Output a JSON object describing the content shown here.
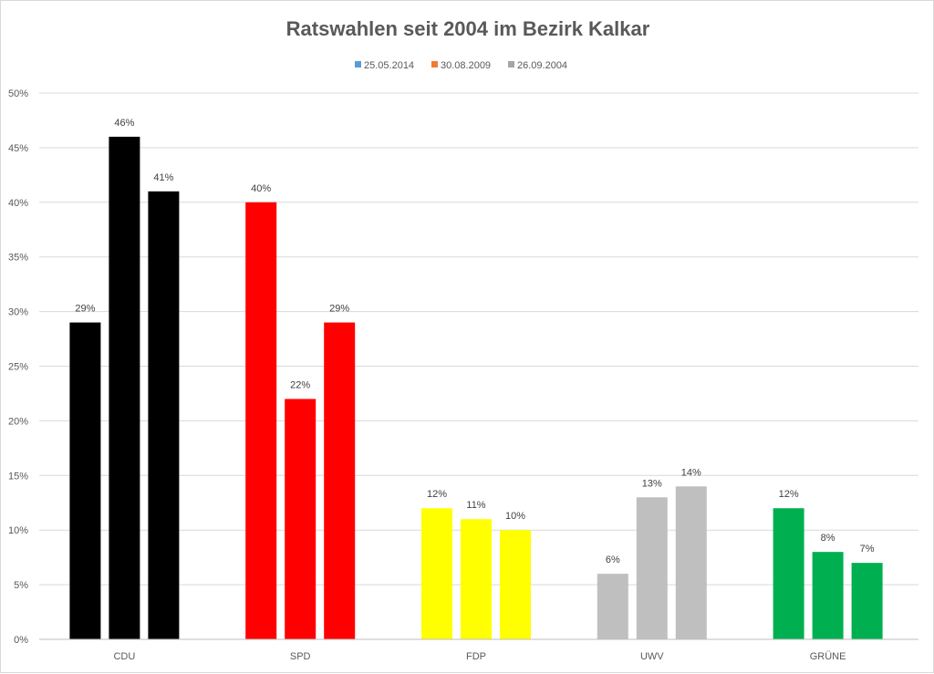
{
  "chart_data": {
    "type": "bar",
    "title": "Ratswahlen seit 2004 im Bezirk Kalkar",
    "categories": [
      "CDU",
      "SPD",
      "FDP",
      "UWV",
      "GRÜNE"
    ],
    "series": [
      {
        "name": "25.05.2014",
        "legend_color": "#5b9bd5",
        "values": [
          29,
          40,
          12,
          6,
          12
        ]
      },
      {
        "name": "30.08.2009",
        "legend_color": "#ed7d31",
        "values": [
          46,
          22,
          11,
          13,
          8
        ]
      },
      {
        "name": "26.09.2004",
        "legend_color": "#a5a5a5",
        "values": [
          41,
          29,
          10,
          14,
          7
        ]
      }
    ],
    "category_colors": [
      "#000000",
      "#ff0000",
      "#ffff00",
      "#bfbfbf",
      "#00b050"
    ],
    "y_ticks": [
      "0%",
      "5%",
      "10%",
      "15%",
      "20%",
      "25%",
      "30%",
      "35%",
      "40%",
      "45%",
      "50%"
    ],
    "ylim": [
      0,
      50
    ],
    "value_suffix": "%",
    "grid": true,
    "legend_position": "top"
  }
}
